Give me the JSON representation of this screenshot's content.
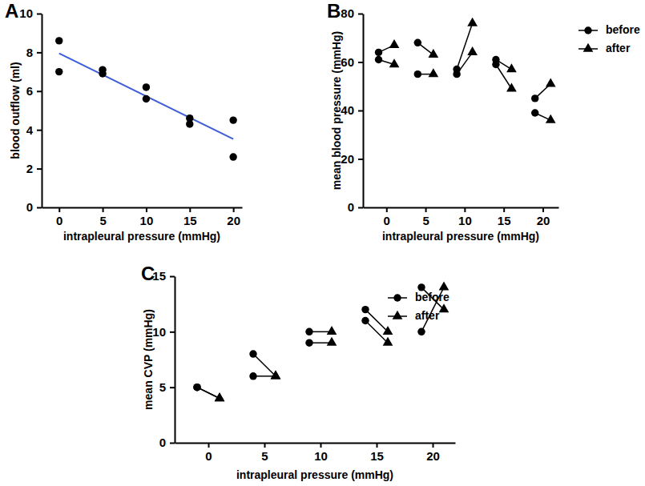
{
  "chart_data": [
    {
      "type": "scatter",
      "title": "A",
      "x_label": "intrapleural pressure (mmHg)",
      "y_label": "blood outflow (ml)",
      "x": [
        0,
        0,
        5,
        5,
        10,
        10,
        15,
        15,
        20,
        20
      ],
      "values": [
        8.6,
        7.0,
        7.1,
        6.9,
        6.2,
        5.6,
        4.6,
        4.3,
        4.5,
        2.6
      ],
      "color": "#000000",
      "marker": "circle",
      "fit": {
        "x": [
          0,
          20
        ],
        "values": [
          7.95,
          3.53
        ],
        "color": "#3d5ed6"
      },
      "xlim": [
        -2,
        21
      ],
      "xticks": [
        0,
        5,
        10,
        15,
        20
      ],
      "ylim": [
        0,
        10
      ],
      "yticks": [
        0,
        2,
        4,
        6,
        8,
        10
      ]
    },
    {
      "type": "paired",
      "title": "B",
      "x_label": "intrapleural pressure (mmHg)",
      "y_label": "mean blood pressure (mmHg)",
      "series": [
        {
          "name": "before",
          "marker": "circle",
          "color": "#000000",
          "x": [
            -1,
            -1,
            4,
            4,
            9,
            9,
            14,
            14,
            19,
            19
          ],
          "values": [
            64,
            61,
            68,
            55,
            57,
            55,
            61,
            59,
            45,
            39
          ]
        },
        {
          "name": "after",
          "marker": "triangle",
          "color": "#000000",
          "x": [
            1,
            1,
            6,
            6,
            11,
            11,
            16,
            16,
            21,
            21
          ],
          "values": [
            67,
            59,
            63,
            55,
            76,
            64,
            57,
            49,
            51,
            36
          ]
        }
      ],
      "legend": "right",
      "xlim": [
        -3,
        22
      ],
      "xticks": [
        0,
        5,
        10,
        15,
        20
      ],
      "ylim": [
        0,
        80
      ],
      "yticks": [
        0,
        20,
        40,
        60,
        80
      ]
    },
    {
      "type": "paired",
      "title": "C",
      "x_label": "intrapleural pressure (mmHg)",
      "y_label": "mean CVP (mmHg)",
      "series": [
        {
          "name": "before",
          "marker": "circle",
          "color": "#000000",
          "x": [
            -1,
            -1,
            4,
            4,
            9,
            9,
            14,
            14,
            19,
            19
          ],
          "values": [
            5,
            5,
            8,
            6,
            10,
            9,
            12,
            11,
            14,
            10
          ]
        },
        {
          "name": "after",
          "marker": "triangle",
          "color": "#000000",
          "x": [
            1,
            1,
            6,
            6,
            11,
            11,
            16,
            16,
            21,
            21
          ],
          "values": [
            4,
            4,
            6,
            6,
            10,
            9,
            10,
            9,
            12,
            14
          ]
        }
      ],
      "legend": "right",
      "xlim": [
        -3,
        22
      ],
      "xticks": [
        0,
        5,
        10,
        15,
        20
      ],
      "ylim": [
        0,
        15
      ],
      "yticks": [
        0,
        5,
        10,
        15
      ]
    }
  ]
}
